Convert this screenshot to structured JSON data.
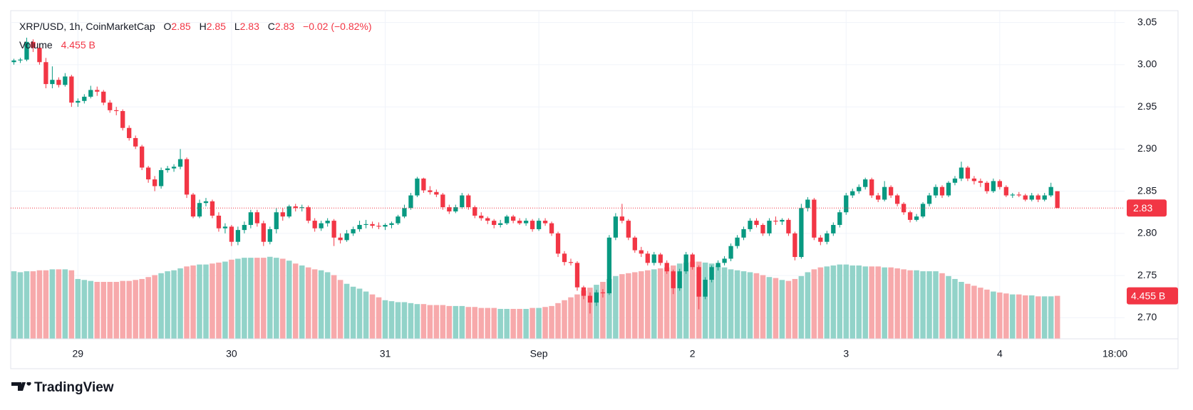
{
  "chart_data": {
    "type": "candlestick",
    "symbol": "XRP/USD, 1h, CoinMarketCap",
    "legend": {
      "open_label": "O",
      "high_label": "H",
      "low_label": "L",
      "close_label": "C",
      "change": "−0.02 (−0.82%)"
    },
    "brand": "TradingView",
    "up_color": "#089981",
    "down_color": "#f23645",
    "grid": true,
    "ylim": [
      2.675,
      3.064
    ],
    "yticks": [
      {
        "value": 2.7,
        "label": "2.70"
      },
      2.75,
      {
        "value": 2.8,
        "label": "2.80"
      },
      2.85,
      {
        "value": 2.9,
        "label": "2.90"
      },
      2.95,
      {
        "value": 3.0,
        "label": "3.00"
      },
      3.05
    ],
    "categories": [
      null,
      null,
      null,
      null,
      null,
      null,
      null,
      null,
      null,
      null,
      "29",
      null,
      null,
      null,
      null,
      null,
      null,
      null,
      null,
      null,
      null,
      null,
      null,
      null,
      null,
      null,
      null,
      null,
      null,
      null,
      null,
      null,
      null,
      null,
      "30",
      null,
      null,
      null,
      null,
      null,
      null,
      null,
      null,
      null,
      null,
      null,
      null,
      null,
      null,
      null,
      null,
      null,
      null,
      null,
      null,
      null,
      null,
      null,
      "31",
      null,
      null,
      null,
      null,
      null,
      null,
      null,
      null,
      null,
      null,
      null,
      null,
      null,
      null,
      null,
      null,
      null,
      null,
      null,
      null,
      null,
      null,
      null,
      "Sep",
      null,
      null,
      null,
      null,
      null,
      null,
      null,
      null,
      null,
      null,
      null,
      null,
      null,
      null,
      null,
      null,
      null,
      null,
      null,
      null,
      null,
      null,
      null,
      "2",
      null,
      null,
      null,
      null,
      null,
      null,
      null,
      null,
      null,
      null,
      null,
      null,
      null,
      null,
      null,
      null,
      null,
      null,
      null,
      null,
      null,
      null,
      null,
      "3",
      null,
      null,
      null,
      null,
      null,
      null,
      null,
      null,
      null,
      null,
      null,
      null,
      null,
      null,
      null,
      null,
      null,
      null,
      null,
      null,
      null,
      null,
      null,
      "4",
      null,
      null,
      null,
      null,
      null,
      null,
      null,
      null,
      null,
      null,
      null,
      null,
      null,
      null,
      null,
      null,
      null,
      "18:00",
      null
    ],
    "ohlc": [
      [
        3.003,
        3.007,
        3.0,
        3.005
      ],
      [
        3.005,
        3.008,
        3.002,
        3.006
      ],
      [
        3.006,
        3.032,
        3.004,
        3.027
      ],
      [
        3.027,
        3.03,
        3.015,
        3.02
      ],
      [
        3.02,
        3.025,
        3.0,
        3.003
      ],
      [
        3.003,
        3.008,
        2.972,
        2.977
      ],
      [
        2.977,
        2.998,
        2.972,
        2.982
      ],
      [
        2.982,
        2.985,
        2.973,
        2.976
      ],
      [
        2.976,
        2.99,
        2.974,
        2.986
      ],
      [
        2.986,
        2.988,
        2.95,
        2.955
      ],
      [
        2.955,
        2.96,
        2.95,
        2.957
      ],
      [
        2.957,
        2.965,
        2.954,
        2.962
      ],
      [
        2.962,
        2.975,
        2.96,
        2.97
      ],
      [
        2.97,
        2.974,
        2.963,
        2.968
      ],
      [
        2.968,
        2.97,
        2.952,
        2.955
      ],
      [
        2.955,
        2.958,
        2.943,
        2.946
      ],
      [
        2.946,
        2.95,
        2.94,
        2.945
      ],
      [
        2.945,
        2.947,
        2.922,
        2.925
      ],
      [
        2.925,
        2.928,
        2.91,
        2.913
      ],
      [
        2.913,
        2.916,
        2.9,
        2.903
      ],
      [
        2.903,
        2.905,
        2.875,
        2.878
      ],
      [
        2.878,
        2.88,
        2.86,
        2.864
      ],
      [
        2.864,
        2.868,
        2.85,
        2.856
      ],
      [
        2.856,
        2.878,
        2.853,
        2.875
      ],
      [
        2.875,
        2.88,
        2.872,
        2.877
      ],
      [
        2.877,
        2.882,
        2.873,
        2.879
      ],
      [
        2.879,
        2.9,
        2.876,
        2.888
      ],
      [
        2.888,
        2.89,
        2.842,
        2.846
      ],
      [
        2.846,
        2.848,
        2.818,
        2.82
      ],
      [
        2.82,
        2.84,
        2.818,
        2.836
      ],
      [
        2.836,
        2.842,
        2.832,
        2.838
      ],
      [
        2.838,
        2.84,
        2.818,
        2.821
      ],
      [
        2.821,
        2.825,
        2.802,
        2.806
      ],
      [
        2.806,
        2.812,
        2.8,
        2.808
      ],
      [
        2.808,
        2.81,
        2.785,
        2.79
      ],
      [
        2.79,
        2.808,
        2.786,
        2.804
      ],
      [
        2.804,
        2.814,
        2.8,
        2.81
      ],
      [
        2.81,
        2.828,
        2.806,
        2.825
      ],
      [
        2.825,
        2.828,
        2.808,
        2.812
      ],
      [
        2.812,
        2.815,
        2.785,
        2.79
      ],
      [
        2.79,
        2.808,
        2.787,
        2.805
      ],
      [
        2.805,
        2.83,
        2.8,
        2.825
      ],
      [
        2.825,
        2.83,
        2.815,
        2.82
      ],
      [
        2.82,
        2.834,
        2.818,
        2.832
      ],
      [
        2.832,
        2.835,
        2.826,
        2.83
      ],
      [
        2.83,
        2.834,
        2.826,
        2.831
      ],
      [
        2.831,
        2.833,
        2.812,
        2.815
      ],
      [
        2.815,
        2.818,
        2.802,
        2.806
      ],
      [
        2.806,
        2.815,
        2.803,
        2.812
      ],
      [
        2.812,
        2.818,
        2.808,
        2.815
      ],
      [
        2.815,
        2.817,
        2.785,
        2.795
      ],
      [
        2.795,
        2.8,
        2.788,
        2.792
      ],
      [
        2.792,
        2.804,
        2.79,
        2.8
      ],
      [
        2.8,
        2.808,
        2.797,
        2.805
      ],
      [
        2.805,
        2.815,
        2.802,
        2.81
      ],
      [
        2.81,
        2.816,
        2.806,
        2.811
      ],
      [
        2.811,
        2.814,
        2.806,
        2.809
      ],
      [
        2.809,
        2.813,
        2.805,
        2.808
      ],
      [
        2.808,
        2.812,
        2.804,
        2.81
      ],
      [
        2.81,
        2.814,
        2.806,
        2.812
      ],
      [
        2.812,
        2.822,
        2.81,
        2.82
      ],
      [
        2.82,
        2.834,
        2.818,
        2.83
      ],
      [
        2.83,
        2.848,
        2.828,
        2.845
      ],
      [
        2.845,
        2.867,
        2.843,
        2.865
      ],
      [
        2.865,
        2.866,
        2.848,
        2.851
      ],
      [
        2.851,
        2.856,
        2.846,
        2.849
      ],
      [
        2.849,
        2.852,
        2.843,
        2.846
      ],
      [
        2.846,
        2.848,
        2.828,
        2.831
      ],
      [
        2.831,
        2.834,
        2.823,
        2.826
      ],
      [
        2.826,
        2.834,
        2.824,
        2.831
      ],
      [
        2.831,
        2.848,
        2.829,
        2.845
      ],
      [
        2.845,
        2.847,
        2.828,
        2.831
      ],
      [
        2.831,
        2.833,
        2.818,
        2.821
      ],
      [
        2.821,
        2.825,
        2.815,
        2.818
      ],
      [
        2.818,
        2.82,
        2.811,
        2.815
      ],
      [
        2.815,
        2.817,
        2.806,
        2.81
      ],
      [
        2.81,
        2.816,
        2.807,
        2.812
      ],
      [
        2.812,
        2.822,
        2.81,
        2.82
      ],
      [
        2.82,
        2.822,
        2.812,
        2.815
      ],
      [
        2.815,
        2.818,
        2.81,
        2.812
      ],
      [
        2.812,
        2.818,
        2.809,
        2.815
      ],
      [
        2.815,
        2.817,
        2.802,
        2.805
      ],
      [
        2.805,
        2.818,
        2.803,
        2.815
      ],
      [
        2.815,
        2.818,
        2.809,
        2.812
      ],
      [
        2.812,
        2.814,
        2.797,
        2.8
      ],
      [
        2.8,
        2.802,
        2.772,
        2.776
      ],
      [
        2.776,
        2.779,
        2.762,
        2.766
      ],
      [
        2.766,
        2.77,
        2.762,
        2.765
      ],
      [
        2.765,
        2.767,
        2.732,
        2.736
      ],
      [
        2.736,
        2.738,
        2.722,
        2.726
      ],
      [
        2.726,
        2.73,
        2.705,
        2.718
      ],
      [
        2.718,
        2.733,
        2.714,
        2.73
      ],
      [
        2.73,
        2.734,
        2.724,
        2.729
      ],
      [
        2.729,
        2.798,
        2.727,
        2.795
      ],
      [
        2.795,
        2.824,
        2.792,
        2.82
      ],
      [
        2.82,
        2.835,
        2.812,
        2.815
      ],
      [
        2.815,
        2.817,
        2.792,
        2.795
      ],
      [
        2.795,
        2.797,
        2.777,
        2.78
      ],
      [
        2.78,
        2.784,
        2.772,
        2.776
      ],
      [
        2.776,
        2.779,
        2.762,
        2.765
      ],
      [
        2.765,
        2.778,
        2.762,
        2.775
      ],
      [
        2.775,
        2.777,
        2.762,
        2.765
      ],
      [
        2.765,
        2.768,
        2.752,
        2.755
      ],
      [
        2.755,
        2.757,
        2.728,
        2.735
      ],
      [
        2.735,
        2.758,
        2.732,
        2.755
      ],
      [
        2.755,
        2.778,
        2.752,
        2.775
      ],
      [
        2.775,
        2.777,
        2.757,
        2.76
      ],
      [
        2.76,
        2.762,
        2.71,
        2.725
      ],
      [
        2.725,
        2.748,
        2.722,
        2.745
      ],
      [
        2.745,
        2.762,
        2.742,
        2.76
      ],
      [
        2.76,
        2.768,
        2.756,
        2.765
      ],
      [
        2.765,
        2.773,
        2.762,
        2.77
      ],
      [
        2.77,
        2.788,
        2.767,
        2.785
      ],
      [
        2.785,
        2.798,
        2.782,
        2.795
      ],
      [
        2.795,
        2.808,
        2.792,
        2.805
      ],
      [
        2.805,
        2.818,
        2.802,
        2.815
      ],
      [
        2.815,
        2.818,
        2.807,
        2.81
      ],
      [
        2.81,
        2.812,
        2.797,
        2.8
      ],
      [
        2.8,
        2.818,
        2.797,
        2.815
      ],
      [
        2.815,
        2.82,
        2.81,
        2.814
      ],
      [
        2.814,
        2.818,
        2.81,
        2.816
      ],
      [
        2.816,
        2.818,
        2.797,
        2.8
      ],
      [
        2.8,
        2.802,
        2.768,
        2.772
      ],
      [
        2.772,
        2.835,
        2.77,
        2.83
      ],
      [
        2.83,
        2.843,
        2.826,
        2.84
      ],
      [
        2.84,
        2.842,
        2.792,
        2.795
      ],
      [
        2.795,
        2.798,
        2.786,
        2.79
      ],
      [
        2.79,
        2.803,
        2.787,
        2.8
      ],
      [
        2.8,
        2.813,
        2.797,
        2.81
      ],
      [
        2.81,
        2.828,
        2.807,
        2.825
      ],
      [
        2.825,
        2.848,
        2.822,
        2.845
      ],
      [
        2.845,
        2.853,
        2.842,
        2.85
      ],
      [
        2.85,
        2.858,
        2.847,
        2.855
      ],
      [
        2.855,
        2.866,
        2.852,
        2.864
      ],
      [
        2.864,
        2.866,
        2.842,
        2.845
      ],
      [
        2.845,
        2.848,
        2.837,
        2.84
      ],
      [
        2.84,
        2.862,
        2.838,
        2.855
      ],
      [
        2.855,
        2.857,
        2.842,
        2.845
      ],
      [
        2.845,
        2.847,
        2.832,
        2.835
      ],
      [
        2.835,
        2.837,
        2.822,
        2.825
      ],
      [
        2.825,
        2.827,
        2.813,
        2.816
      ],
      [
        2.816,
        2.823,
        2.814,
        2.82
      ],
      [
        2.82,
        2.837,
        2.818,
        2.835
      ],
      [
        2.835,
        2.848,
        2.832,
        2.845
      ],
      [
        2.845,
        2.858,
        2.842,
        2.855
      ],
      [
        2.855,
        2.857,
        2.842,
        2.845
      ],
      [
        2.845,
        2.862,
        2.843,
        2.86
      ],
      [
        2.86,
        2.868,
        2.857,
        2.865
      ],
      [
        2.865,
        2.885,
        2.862,
        2.878
      ],
      [
        2.878,
        2.88,
        2.862,
        2.865
      ],
      [
        2.865,
        2.868,
        2.858,
        2.862
      ],
      [
        2.862,
        2.865,
        2.855,
        2.86
      ],
      [
        2.86,
        2.862,
        2.847,
        2.85
      ],
      [
        2.85,
        2.865,
        2.848,
        2.862
      ],
      [
        2.862,
        2.864,
        2.852,
        2.855
      ],
      [
        2.855,
        2.857,
        2.843,
        2.845
      ],
      [
        2.845,
        2.848,
        2.842,
        2.846
      ],
      [
        2.846,
        2.849,
        2.843,
        2.845
      ],
      [
        2.845,
        2.847,
        2.838,
        2.84
      ],
      [
        2.84,
        2.848,
        2.838,
        2.845
      ],
      [
        2.845,
        2.847,
        2.837,
        2.84
      ],
      [
        2.84,
        2.848,
        2.838,
        2.845
      ],
      [
        2.845,
        2.86,
        2.843,
        2.855
      ],
      [
        2.85,
        2.85,
        2.83,
        2.83
      ],
      null,
      null,
      null,
      null,
      null,
      null,
      null,
      null,
      null,
      null
    ],
    "volume": {
      "name": "Volume",
      "last_label": "4.455 B",
      "up_color": "#92d3c9",
      "down_color": "#f7a9ab",
      "values": [
        7.0,
        6.9,
        7.0,
        7.0,
        7.1,
        7.1,
        7.2,
        7.2,
        7.2,
        7.1,
        6.2,
        6.1,
        6.0,
        5.9,
        5.9,
        5.9,
        5.9,
        6.0,
        6.0,
        6.1,
        6.2,
        6.4,
        6.6,
        6.8,
        7.0,
        7.1,
        7.3,
        7.5,
        7.6,
        7.7,
        7.7,
        7.8,
        7.9,
        8.0,
        8.2,
        8.3,
        8.4,
        8.4,
        8.4,
        8.4,
        8.5,
        8.4,
        8.3,
        8.1,
        7.8,
        7.6,
        7.4,
        7.2,
        7.1,
        6.9,
        6.6,
        6.1,
        5.7,
        5.4,
        5.2,
        4.9,
        4.6,
        4.3,
        4.0,
        3.9,
        3.8,
        3.8,
        3.7,
        3.6,
        3.6,
        3.5,
        3.5,
        3.5,
        3.4,
        3.4,
        3.4,
        3.3,
        3.3,
        3.2,
        3.2,
        3.2,
        3.1,
        3.1,
        3.1,
        3.1,
        3.1,
        3.2,
        3.2,
        3.3,
        3.4,
        3.7,
        4.0,
        4.3,
        4.6,
        5.0,
        5.3,
        5.6,
        5.9,
        6.2,
        6.5,
        6.7,
        6.8,
        6.9,
        7.0,
        7.1,
        7.2,
        7.3,
        7.4,
        7.6,
        7.8,
        7.9,
        8.0,
        8.0,
        7.9,
        7.8,
        7.6,
        7.4,
        7.2,
        7.1,
        7.0,
        6.9,
        6.8,
        6.6,
        6.4,
        6.3,
        6.1,
        6.0,
        6.2,
        6.5,
        6.9,
        7.2,
        7.4,
        7.5,
        7.6,
        7.7,
        7.7,
        7.6,
        7.6,
        7.5,
        7.5,
        7.5,
        7.4,
        7.4,
        7.3,
        7.2,
        7.1,
        7.1,
        7.0,
        7.0,
        7.0,
        6.8,
        6.5,
        6.2,
        5.9,
        5.7,
        5.5,
        5.3,
        5.1,
        4.9,
        4.8,
        4.7,
        4.6,
        4.6,
        4.5,
        4.5,
        4.4,
        4.4,
        4.4,
        4.455,
        null,
        null,
        null,
        null,
        null,
        null,
        null,
        null,
        null,
        null
      ]
    }
  }
}
